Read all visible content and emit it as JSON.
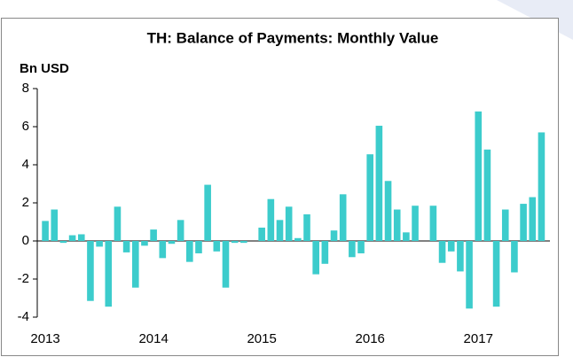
{
  "chart_data": {
    "type": "bar",
    "title": "TH: Balance of Payments: Monthly Value",
    "y_label": "Bn USD",
    "categories": [
      "2013",
      null,
      null,
      null,
      null,
      null,
      null,
      null,
      null,
      null,
      null,
      null,
      "2014",
      null,
      null,
      null,
      null,
      null,
      null,
      null,
      null,
      null,
      null,
      null,
      "2015",
      null,
      null,
      null,
      null,
      null,
      null,
      null,
      null,
      null,
      null,
      null,
      "2016",
      null,
      null,
      null,
      null,
      null,
      null,
      null,
      null,
      null,
      null,
      null,
      "2017",
      null,
      null,
      null,
      null,
      null,
      null,
      null
    ],
    "values": [
      1.05,
      1.65,
      -0.1,
      0.3,
      0.35,
      -3.15,
      -0.3,
      -3.45,
      1.8,
      -0.6,
      -2.45,
      -0.25,
      0.6,
      -0.9,
      -0.15,
      1.1,
      -1.1,
      -0.65,
      2.95,
      -0.55,
      -2.45,
      -0.1,
      -0.1,
      0,
      0.7,
      2.2,
      1.1,
      1.8,
      0.15,
      1.4,
      -1.75,
      -1.2,
      0.55,
      2.45,
      -0.85,
      -0.65,
      4.55,
      6.05,
      3.15,
      1.65,
      0.45,
      1.85,
      0,
      1.85,
      -1.15,
      -0.55,
      -1.6,
      -3.55,
      6.8,
      4.8,
      -3.45,
      1.65,
      -1.65,
      1.95,
      2.3,
      5.7
    ],
    "color": "#3ccccc",
    "ylim": [
      -4,
      8
    ],
    "yticks": [
      -4,
      -2,
      0,
      2,
      4,
      6,
      8
    ]
  }
}
